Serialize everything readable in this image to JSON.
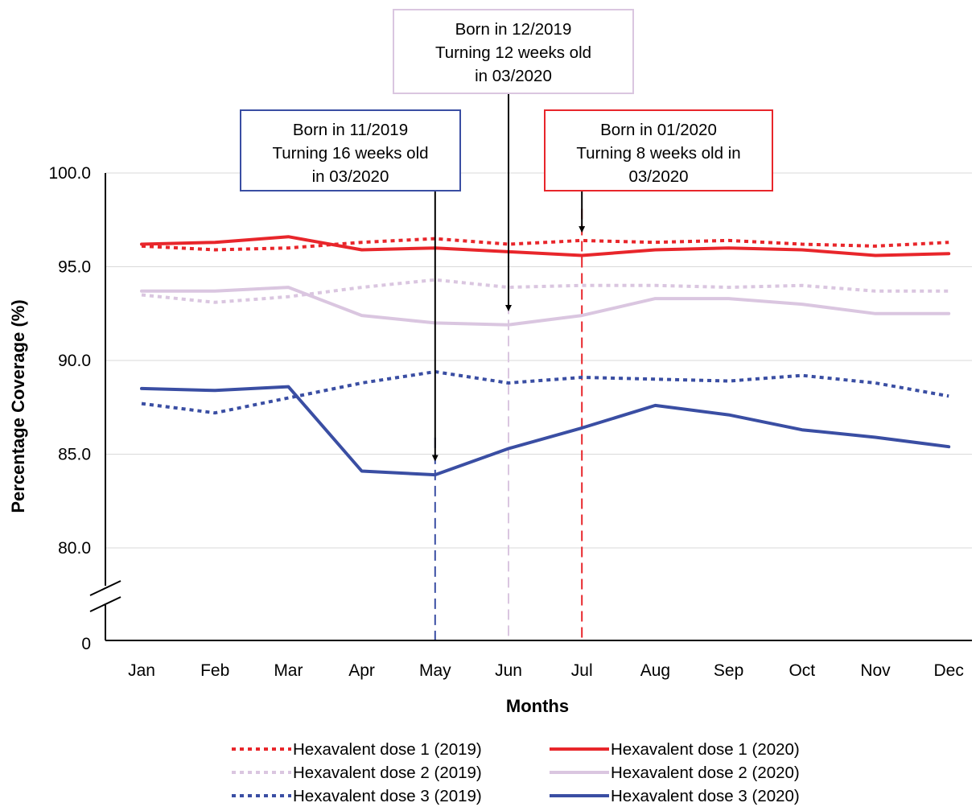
{
  "chart_data": {
    "type": "line",
    "title": "",
    "xlabel": "Months",
    "ylabel": "Percentage Coverage (%)",
    "categories": [
      "Jan",
      "Feb",
      "Mar",
      "Apr",
      "May",
      "Jun",
      "Jul",
      "Aug",
      "Sep",
      "Oct",
      "Nov",
      "Dec"
    ],
    "y_ticks": [
      "100.0",
      "95.0",
      "90.0",
      "85.0",
      "80.0",
      "0"
    ],
    "ylim_upper_segment": [
      77.5,
      100
    ],
    "axis_break": true,
    "grid": "horizontal",
    "legend_placement": "bottom",
    "series": [
      {
        "name": "Hexavalent dose 1 (2019)",
        "color": "#e8262b",
        "dashed": true,
        "values": [
          96.1,
          95.9,
          96.0,
          96.3,
          96.5,
          96.2,
          96.4,
          96.3,
          96.4,
          96.2,
          96.1,
          96.3
        ]
      },
      {
        "name": "Hexavalent dose 1 (2020)",
        "color": "#e8262b",
        "dashed": false,
        "values": [
          96.2,
          96.3,
          96.6,
          95.9,
          96.0,
          95.8,
          95.6,
          95.9,
          96.0,
          95.9,
          95.6,
          95.7
        ]
      },
      {
        "name": "Hexavalent dose 2 (2019)",
        "color": "#dac6e0",
        "dashed": true,
        "values": [
          93.5,
          93.1,
          93.4,
          93.9,
          94.3,
          93.9,
          94.0,
          94.0,
          93.9,
          94.0,
          93.7,
          93.7
        ]
      },
      {
        "name": "Hexavalent dose 2 (2020)",
        "color": "#dac6e0",
        "dashed": false,
        "values": [
          93.7,
          93.7,
          93.9,
          92.4,
          92.0,
          91.9,
          92.4,
          93.3,
          93.3,
          93.0,
          92.5,
          92.5
        ]
      },
      {
        "name": "Hexavalent dose 3 (2019)",
        "color": "#3a4ea3",
        "dashed": true,
        "values": [
          87.7,
          87.2,
          88.0,
          88.8,
          89.4,
          88.8,
          89.1,
          89.0,
          88.9,
          89.2,
          88.8,
          88.1
        ]
      },
      {
        "name": "Hexavalent dose 3 (2020)",
        "color": "#3a4ea3",
        "dashed": false,
        "values": [
          88.5,
          88.4,
          88.6,
          84.1,
          83.9,
          85.3,
          86.4,
          87.6,
          87.1,
          86.3,
          85.9,
          85.4
        ]
      }
    ],
    "annotations": [
      {
        "lines": [
          "Born in 11/2019",
          "Turning 16 weeks old",
          "in 03/2020"
        ],
        "border_color": "#3a4ea3",
        "marker_month": "May",
        "arrow_to": 84.6
      },
      {
        "lines": [
          "Born in 12/2019",
          "Turning 12 weeks old",
          "in 03/2020"
        ],
        "border_color": "#dac6e0",
        "marker_month": "Jun",
        "arrow_to": 92.6
      },
      {
        "lines": [
          "Born in 01/2020",
          "Turning 8 weeks old in",
          "03/2020"
        ],
        "border_color": "#e8262b",
        "marker_month": "Jul",
        "arrow_to": 96.8
      }
    ]
  }
}
